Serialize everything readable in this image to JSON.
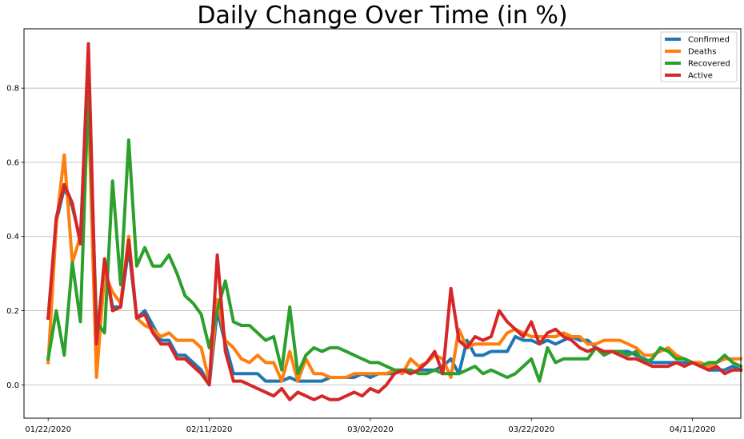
{
  "chart_data": {
    "type": "line",
    "title": "Daily Change Over Time (in %)",
    "xlabel": "",
    "ylabel": "",
    "x_ticks": [
      "01/22/2020",
      "02/11/2020",
      "03/02/2020",
      "03/22/2020",
      "04/11/2020"
    ],
    "y_ticks": [
      "0.0",
      "0.2",
      "0.4",
      "0.6",
      "0.8"
    ],
    "xlim": [
      -3,
      86
    ],
    "ylim": [
      -0.09,
      0.96
    ],
    "grid": "horizontal",
    "legend_position": "top-right",
    "series": [
      {
        "name": "Confirmed",
        "color": "#1f77b4",
        "values": [
          0.18,
          0.44,
          0.53,
          0.48,
          0.39,
          0.9,
          0.11,
          0.33,
          0.21,
          0.21,
          0.37,
          0.18,
          0.2,
          0.16,
          0.12,
          0.12,
          0.08,
          0.08,
          0.06,
          0.04,
          0.0,
          0.2,
          0.11,
          0.03,
          0.03,
          0.03,
          0.03,
          0.01,
          0.01,
          0.01,
          0.02,
          0.01,
          0.01,
          0.01,
          0.01,
          0.02,
          0.02,
          0.02,
          0.02,
          0.03,
          0.02,
          0.03,
          0.03,
          0.03,
          0.04,
          0.03,
          0.04,
          0.04,
          0.04,
          0.05,
          0.07,
          0.03,
          0.12,
          0.08,
          0.08,
          0.09,
          0.09,
          0.09,
          0.13,
          0.12,
          0.12,
          0.11,
          0.12,
          0.11,
          0.12,
          0.13,
          0.12,
          0.12,
          0.1,
          0.09,
          0.09,
          0.09,
          0.09,
          0.08,
          0.07,
          0.06,
          0.06,
          0.06,
          0.06,
          0.06,
          0.06,
          0.05,
          0.04,
          0.04,
          0.04,
          0.05,
          0.04
        ]
      },
      {
        "name": "Deaths",
        "color": "#ff7f0e",
        "values": [
          0.06,
          0.43,
          0.62,
          0.33,
          0.4,
          0.75,
          0.02,
          0.3,
          0.25,
          0.22,
          0.4,
          0.18,
          0.16,
          0.15,
          0.13,
          0.14,
          0.12,
          0.12,
          0.12,
          0.1,
          0.01,
          0.23,
          0.12,
          0.1,
          0.07,
          0.06,
          0.08,
          0.06,
          0.06,
          0.01,
          0.09,
          0.01,
          0.07,
          0.03,
          0.03,
          0.02,
          0.02,
          0.02,
          0.03,
          0.03,
          0.03,
          0.03,
          0.03,
          0.04,
          0.03,
          0.07,
          0.05,
          0.06,
          0.08,
          0.07,
          0.02,
          0.15,
          0.1,
          0.11,
          0.11,
          0.11,
          0.11,
          0.14,
          0.15,
          0.14,
          0.13,
          0.13,
          0.13,
          0.13,
          0.14,
          0.13,
          0.13,
          0.11,
          0.11,
          0.12,
          0.12,
          0.12,
          0.11,
          0.1,
          0.08,
          0.08,
          0.09,
          0.1,
          0.08,
          0.07,
          0.06,
          0.06,
          0.05,
          0.06,
          0.07,
          0.07,
          0.07
        ]
      },
      {
        "name": "Recovered",
        "color": "#2ca02c",
        "values": [
          0.07,
          0.2,
          0.08,
          0.33,
          0.17,
          0.8,
          0.17,
          0.14,
          0.55,
          0.27,
          0.66,
          0.32,
          0.37,
          0.32,
          0.32,
          0.35,
          0.3,
          0.24,
          0.22,
          0.19,
          0.1,
          0.2,
          0.28,
          0.17,
          0.16,
          0.16,
          0.14,
          0.12,
          0.13,
          0.04,
          0.21,
          0.03,
          0.08,
          0.1,
          0.09,
          0.1,
          0.1,
          0.09,
          0.08,
          0.07,
          0.06,
          0.06,
          0.05,
          0.04,
          0.04,
          0.04,
          0.03,
          0.03,
          0.04,
          0.03,
          0.03,
          0.03,
          0.04,
          0.05,
          0.03,
          0.04,
          0.03,
          0.02,
          0.03,
          0.05,
          0.07,
          0.01,
          0.1,
          0.06,
          0.07,
          0.07,
          0.07,
          0.07,
          0.1,
          0.08,
          0.09,
          0.09,
          0.08,
          0.09,
          0.06,
          0.07,
          0.1,
          0.09,
          0.07,
          0.07,
          0.06,
          0.05,
          0.06,
          0.06,
          0.08,
          0.06,
          0.05
        ]
      },
      {
        "name": "Active",
        "color": "#d62728",
        "values": [
          0.18,
          0.45,
          0.54,
          0.49,
          0.38,
          0.92,
          0.11,
          0.34,
          0.2,
          0.21,
          0.39,
          0.18,
          0.19,
          0.14,
          0.11,
          0.11,
          0.07,
          0.07,
          0.05,
          0.03,
          0.0,
          0.35,
          0.09,
          0.01,
          0.01,
          0.0,
          -0.01,
          -0.02,
          -0.03,
          -0.01,
          -0.04,
          -0.02,
          -0.03,
          -0.04,
          -0.03,
          -0.04,
          -0.04,
          -0.03,
          -0.02,
          -0.03,
          -0.01,
          -0.02,
          0.0,
          0.03,
          0.04,
          0.03,
          0.04,
          0.06,
          0.09,
          0.03,
          0.26,
          0.12,
          0.1,
          0.13,
          0.12,
          0.13,
          0.2,
          0.17,
          0.15,
          0.13,
          0.17,
          0.11,
          0.14,
          0.15,
          0.13,
          0.12,
          0.1,
          0.09,
          0.1,
          0.09,
          0.09,
          0.08,
          0.07,
          0.07,
          0.06,
          0.05,
          0.05,
          0.05,
          0.06,
          0.05,
          0.06,
          0.05,
          0.04,
          0.05,
          0.03,
          0.04,
          0.04
        ]
      }
    ]
  }
}
